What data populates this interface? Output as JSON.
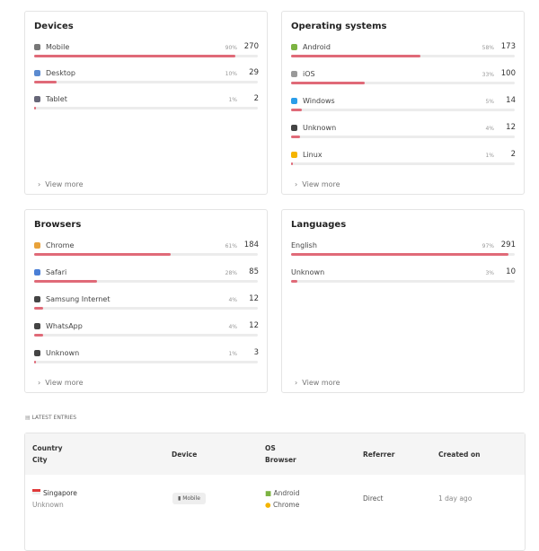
{
  "cards": [
    {
      "title": "Devices",
      "rows": [
        {
          "name": "Mobile",
          "share": 90,
          "share_label": "90%",
          "count": 270
        },
        {
          "name": "Desktop",
          "share": 10,
          "share_label": "10%",
          "count": 29
        },
        {
          "name": "Tablet",
          "share": 1,
          "share_label": "1%",
          "count": 2
        }
      ],
      "more": "View more"
    },
    {
      "title": "Operating systems",
      "rows": [
        {
          "name": "Android",
          "share": 58,
          "share_label": "58%",
          "count": 173
        },
        {
          "name": "iOS",
          "share": 33,
          "share_label": "33%",
          "count": 100
        },
        {
          "name": "Windows",
          "share": 5,
          "share_label": "5%",
          "count": 14
        },
        {
          "name": "Unknown",
          "share": 4,
          "share_label": "4%",
          "count": 12
        },
        {
          "name": "Linux",
          "share": 1,
          "share_label": "1%",
          "count": 2
        }
      ],
      "more": "View more"
    },
    {
      "title": "Browsers",
      "rows": [
        {
          "name": "Chrome",
          "share": 61,
          "share_label": "61%",
          "count": 184
        },
        {
          "name": "Safari",
          "share": 28,
          "share_label": "28%",
          "count": 85
        },
        {
          "name": "Samsung Internet",
          "share": 4,
          "share_label": "4%",
          "count": 12
        },
        {
          "name": "WhatsApp",
          "share": 4,
          "share_label": "4%",
          "count": 12
        },
        {
          "name": "Unknown",
          "share": 1,
          "share_label": "1%",
          "count": 3
        }
      ],
      "more": "View more"
    },
    {
      "title": "Languages",
      "rows": [
        {
          "name": "English",
          "share": 97,
          "share_label": "97%",
          "count": 291
        },
        {
          "name": "Unknown",
          "share": 3,
          "share_label": "3%",
          "count": 10
        }
      ],
      "more": "View more"
    }
  ],
  "latest": {
    "title": "LATEST ENTRIES",
    "headers": {
      "country": "Country",
      "city": "City",
      "device": "Device",
      "os": "OS",
      "browser": "Browser",
      "referrer": "Referrer",
      "created": "Created on"
    },
    "rows": [
      {
        "country": "Singapore",
        "city": "Unknown",
        "device": "Mobile",
        "os": "Android",
        "browser": "Chrome",
        "referrer": "Direct",
        "created": "1 day ago"
      }
    ]
  }
}
